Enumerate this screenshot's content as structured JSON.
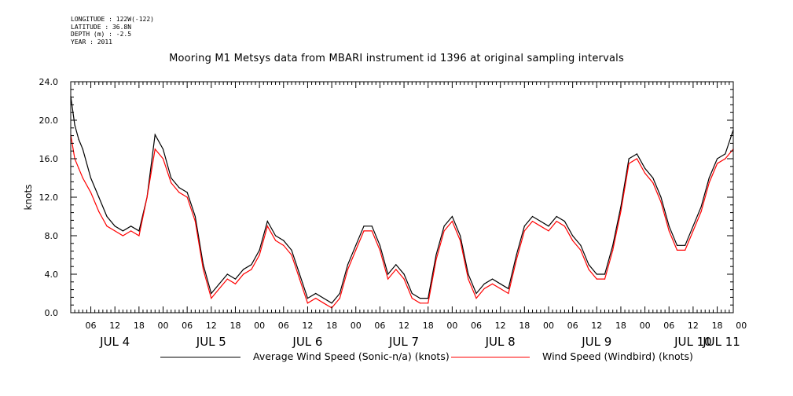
{
  "header": {
    "longitude": "LONGITUDE : 122W(-122)",
    "latitude": "LATITUDE : 36.8N",
    "depth": "DEPTH (m) : -2.5",
    "year": "YEAR : 2011"
  },
  "chart_data": {
    "type": "line",
    "title": "Mooring M1 Metsys data from MBARI instrument id 1396 at original sampling intervals",
    "ylabel": "knots",
    "xlabel": "",
    "ylim": [
      0,
      24
    ],
    "yticks": [
      "0.0",
      "4.0",
      "8.0",
      "12.0",
      "16.0",
      "20.0",
      "24.0"
    ],
    "xlim_hours": [
      1,
      166
    ],
    "hour_tick_labels": [
      "06",
      "12",
      "18",
      "00",
      "06",
      "12",
      "18",
      "00",
      "06",
      "12",
      "18",
      "00",
      "06",
      "12",
      "18",
      "00",
      "06",
      "12",
      "18",
      "00",
      "06",
      "12",
      "18",
      "00",
      "06",
      "12",
      "18",
      "00"
    ],
    "day_labels": [
      "JUL  4",
      "JUL  5",
      "JUL  6",
      "JUL  7",
      "JUL  8",
      "JUL  9",
      "JUL 10",
      "JUL 11"
    ],
    "grid": false,
    "legend_position": "bottom",
    "x_hours": [
      1,
      2,
      3,
      4,
      6,
      8,
      10,
      12,
      14,
      16,
      18,
      20,
      22,
      24,
      26,
      28,
      30,
      32,
      34,
      36,
      38,
      40,
      42,
      44,
      46,
      48,
      50,
      52,
      54,
      56,
      58,
      60,
      62,
      64,
      66,
      68,
      70,
      72,
      74,
      76,
      78,
      80,
      82,
      84,
      86,
      88,
      90,
      92,
      94,
      96,
      98,
      100,
      102,
      104,
      106,
      108,
      110,
      112,
      114,
      116,
      118,
      120,
      122,
      124,
      126,
      128,
      130,
      132,
      134,
      136,
      138,
      140,
      142,
      144,
      146,
      148,
      150,
      152,
      154,
      156,
      158,
      160,
      162,
      164,
      166
    ],
    "series": [
      {
        "name": "Average Wind Speed (Sonic-n/a) (knots)",
        "color": "#000000",
        "values": [
          22.5,
          19.5,
          18,
          17,
          14,
          12,
          10,
          9,
          8.5,
          9,
          8.5,
          12,
          18.5,
          17,
          14,
          13,
          12.5,
          10,
          5,
          2,
          3,
          4,
          3.5,
          4.5,
          5,
          6.5,
          9.5,
          8,
          7.5,
          6.5,
          4,
          1.5,
          2,
          1.5,
          1,
          2,
          5,
          7,
          9,
          9,
          7,
          4,
          5,
          4,
          2,
          1.5,
          1.5,
          6,
          9,
          10,
          8,
          4,
          2,
          3,
          3.5,
          3,
          2.5,
          6,
          9,
          10,
          9.5,
          9,
          10,
          9.5,
          8,
          7,
          5,
          4,
          4,
          7,
          11,
          16,
          16.5,
          15,
          14,
          12,
          9,
          7,
          7,
          9,
          11,
          14,
          16,
          16.5,
          19
        ]
      },
      {
        "name": "Wind Speed (Windbird) (knots)",
        "color": "#ff0000",
        "values": [
          18.5,
          16,
          15,
          14,
          12.5,
          10.5,
          9,
          8.5,
          8,
          8.5,
          8,
          12,
          17,
          16,
          13.5,
          12.5,
          12,
          9.5,
          4.5,
          1.5,
          2.5,
          3.5,
          3,
          4,
          4.5,
          6,
          9,
          7.5,
          7,
          6,
          3.5,
          1,
          1.5,
          1,
          0.5,
          1.5,
          4.5,
          6.5,
          8.5,
          8.5,
          6.5,
          3.5,
          4.5,
          3.5,
          1.5,
          1,
          1,
          5.5,
          8.5,
          9.5,
          7.5,
          3.5,
          1.5,
          2.5,
          3,
          2.5,
          2,
          5.5,
          8.5,
          9.5,
          9,
          8.5,
          9.5,
          9,
          7.5,
          6.5,
          4.5,
          3.5,
          3.5,
          6.5,
          10.5,
          15.5,
          16,
          14.5,
          13.5,
          11.5,
          8.5,
          6.5,
          6.5,
          8.5,
          10.5,
          13.5,
          15.5,
          16,
          17
        ]
      }
    ]
  }
}
